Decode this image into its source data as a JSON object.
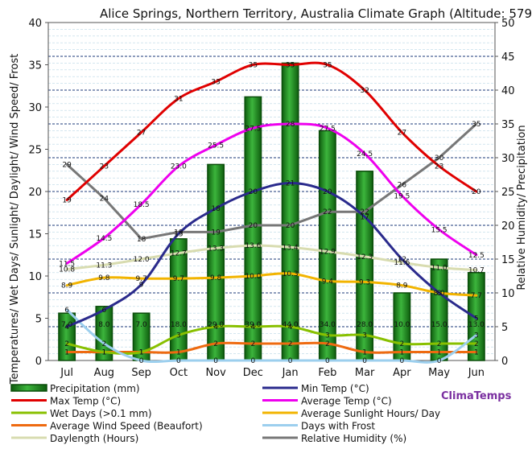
{
  "chart_data": {
    "type": "bar",
    "title": "Alice Springs, Northern Territory, Australia Climate Graph (Altitude: 579",
    "ylabel_left": "Temperatures/ Wet Days/ Sunlight/ Daylight/ Wind Speed/ Frost",
    "ylabel_right": "Relative Humidity/ Precipitation",
    "brand": "ClimaTemps",
    "ylim_left": [
      0,
      40
    ],
    "ylim_right": [
      0,
      50
    ],
    "left_ticks": [
      "0",
      "5",
      "10",
      "15",
      "20",
      "25",
      "30",
      "35",
      "40"
    ],
    "right_ticks": [
      "0",
      "5",
      "10",
      "15",
      "20",
      "25",
      "30",
      "35",
      "40",
      "45",
      "50"
    ],
    "categories": [
      "Jul",
      "Aug",
      "Sep",
      "Oct",
      "Nov",
      "Dec",
      "Jan",
      "Feb",
      "Mar",
      "Apr",
      "May",
      "Jun"
    ],
    "series": [
      {
        "key": "precip",
        "name": "Precipitation (mm)",
        "axis": "right",
        "kind": "bar",
        "color": "#1f8a1f",
        "values": [
          7.0,
          8.0,
          7.0,
          18.0,
          29.0,
          39.0,
          44.0,
          34.0,
          28.0,
          10.0,
          15.0,
          13.0
        ],
        "labels": [
          "7.0",
          "8.0",
          "7.0",
          "18.0",
          "29.0",
          "39.0",
          "44.0",
          "34.0",
          "28.0",
          "10.0",
          "15.0",
          "13.0"
        ]
      },
      {
        "key": "max",
        "name": "Max Temp (°C)",
        "axis": "left",
        "kind": "line",
        "color": "#e00000",
        "values": [
          19,
          23,
          27,
          31,
          33,
          35,
          35,
          35,
          32,
          27,
          23,
          20
        ],
        "labels": [
          "19",
          "23",
          "27",
          "31",
          "33",
          "35",
          "35",
          "35",
          "32",
          "27",
          "23",
          "20"
        ]
      },
      {
        "key": "min",
        "name": "Min Temp (°C)",
        "axis": "left",
        "kind": "line",
        "color": "#2a2a8c",
        "values": [
          4,
          6,
          9,
          15,
          18,
          20,
          21,
          20,
          17,
          12,
          8,
          5
        ],
        "labels": [
          "4",
          "6",
          "9",
          "15",
          "18",
          "20",
          "21",
          "20",
          "17",
          "12",
          "8",
          "5"
        ]
      },
      {
        "key": "avg",
        "name": "Average Temp (°C)",
        "axis": "left",
        "kind": "line",
        "color": "#ee00ee",
        "values": [
          11.5,
          14.5,
          18.5,
          23.0,
          25.5,
          27.5,
          28.0,
          27.5,
          24.5,
          19.5,
          15.5,
          12.5
        ],
        "labels": [
          "11.5",
          "14.5",
          "18.5",
          "23.0",
          "25.5",
          "27.5",
          "28",
          "27.5",
          "24.5",
          "19.5",
          "15.5",
          "12.5"
        ]
      },
      {
        "key": "wet",
        "name": "Wet Days (>0.1 mm)",
        "axis": "left",
        "kind": "line",
        "color": "#88c000",
        "values": [
          2,
          1,
          1,
          3,
          4,
          4,
          4,
          3,
          3,
          2,
          2,
          2
        ],
        "labels": [
          "2",
          "1",
          "1",
          "3",
          "4",
          "4",
          "4",
          "3",
          "3",
          "2",
          "2",
          "2"
        ]
      },
      {
        "key": "sun",
        "name": "Average Sunlight Hours/ Day",
        "axis": "left",
        "kind": "line",
        "color": "#f2b400",
        "values": [
          8.9,
          9.8,
          9.7,
          9.7,
          9.8,
          10.0,
          10.3,
          9.4,
          9.3,
          8.9,
          8.0,
          7.7
        ],
        "labels": [
          "8.9",
          "9.8",
          "9.7",
          "9.7",
          "9.8",
          "10.0",
          "10.3",
          "9.4",
          "9.3",
          "8.9",
          "8.0",
          "7.7"
        ]
      },
      {
        "key": "wind",
        "name": "Average Wind Speed (Beaufort)",
        "axis": "left",
        "kind": "line",
        "color": "#ee6a10",
        "values": [
          1,
          1,
          1,
          1,
          2,
          2,
          2,
          2,
          1,
          1,
          1,
          1
        ],
        "labels": [
          "1",
          "1",
          "1",
          "1",
          "2",
          "2",
          "2",
          "2",
          "1",
          "1",
          "1",
          "1"
        ]
      },
      {
        "key": "frost",
        "name": "Days with Frost",
        "axis": "left",
        "kind": "line",
        "color": "#9ccfee",
        "values": [
          6,
          2,
          0,
          0,
          0,
          0,
          0,
          0,
          0,
          0,
          0,
          3
        ],
        "labels": [
          "6",
          "2",
          "0",
          "0",
          "0",
          "0",
          "0",
          "0",
          "0",
          "0",
          "0",
          "3"
        ]
      },
      {
        "key": "daylen",
        "name": "Daylength (Hours)",
        "axis": "left",
        "kind": "line",
        "color": "#d8dcb0",
        "values": [
          10.8,
          11.3,
          12.0,
          12.7,
          13.3,
          13.6,
          13.4,
          12.9,
          12.3,
          11.6,
          11.0,
          10.7
        ],
        "labels": [
          "10.8",
          "11.3",
          "12.0",
          "12.7",
          "13.3",
          "13.6",
          "13.4",
          "12.9",
          "12.3",
          "11.6",
          "11.0",
          "10.7"
        ]
      },
      {
        "key": "humid",
        "name": "Relative Humidity (%)",
        "axis": "right",
        "kind": "line",
        "color": "#777777",
        "values": [
          29,
          24,
          18,
          19,
          19,
          20,
          20,
          22,
          22,
          26,
          30,
          35
        ],
        "labels": [
          "29",
          "24",
          "18",
          "19",
          "19",
          "20",
          "20",
          "22",
          "22",
          "26",
          "30",
          "35"
        ]
      }
    ]
  }
}
